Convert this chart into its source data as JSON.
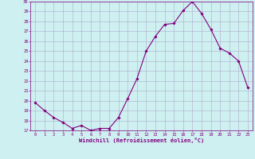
{
  "x": [
    0,
    1,
    2,
    3,
    4,
    5,
    6,
    7,
    8,
    9,
    10,
    11,
    12,
    13,
    14,
    15,
    16,
    17,
    18,
    19,
    20,
    21,
    22,
    23
  ],
  "y": [
    19.8,
    19.0,
    18.3,
    17.8,
    17.2,
    17.5,
    17.0,
    17.2,
    17.2,
    18.3,
    20.2,
    22.2,
    25.0,
    26.5,
    27.7,
    27.8,
    29.1,
    30.0,
    28.8,
    27.2,
    25.3,
    24.8,
    24.0,
    21.3
  ],
  "line_color": "#800080",
  "marker": "D",
  "marker_size": 1.8,
  "bg_color": "#cff0f0",
  "grid_color": "#aaaacc",
  "xlabel": "Windchill (Refroidissement éolien,°C)",
  "xlabel_color": "#800080",
  "tick_color": "#800080",
  "ylim": [
    17,
    30
  ],
  "xlim": [
    -0.5,
    23.5
  ],
  "yticks": [
    17,
    18,
    19,
    20,
    21,
    22,
    23,
    24,
    25,
    26,
    27,
    28,
    29,
    30
  ],
  "xticks": [
    0,
    1,
    2,
    3,
    4,
    5,
    6,
    7,
    8,
    9,
    10,
    11,
    12,
    13,
    14,
    15,
    16,
    17,
    18,
    19,
    20,
    21,
    22,
    23
  ],
  "line_width": 0.8,
  "marker_color": "#800080"
}
